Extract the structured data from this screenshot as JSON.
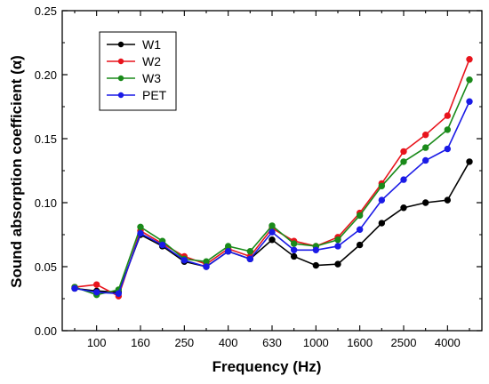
{
  "chart_data": {
    "type": "line",
    "xlabel": "Frequency (Hz)",
    "ylabel": "Sound absorption coefficient (α)",
    "ylim": [
      0.0,
      0.25
    ],
    "yticks": [
      "0.00",
      "0.05",
      "0.10",
      "0.15",
      "0.20",
      "0.25"
    ],
    "categories": [
      "80",
      "100",
      "125",
      "160",
      "200",
      "250",
      "315",
      "400",
      "500",
      "630",
      "800",
      "1000",
      "1250",
      "1600",
      "2000",
      "2500",
      "3150",
      "4000",
      "5000"
    ],
    "xtick_labels": [
      "100",
      "160",
      "250",
      "400",
      "630",
      "1000",
      "1600",
      "2500",
      "4000"
    ],
    "xtick_label_indices": [
      1,
      3,
      5,
      7,
      9,
      11,
      13,
      15,
      17
    ],
    "grid": false,
    "legend_position": "top-left",
    "series": [
      {
        "name": "W1",
        "color": "#000000",
        "values": [
          0.033,
          0.031,
          0.03,
          0.075,
          0.066,
          0.054,
          0.05,
          0.062,
          0.056,
          0.071,
          0.058,
          0.051,
          0.052,
          0.067,
          0.084,
          0.096,
          0.1,
          0.102,
          0.132
        ]
      },
      {
        "name": "W2",
        "color": "#e8141c",
        "values": [
          0.034,
          0.036,
          0.027,
          0.078,
          0.068,
          0.058,
          0.052,
          0.064,
          0.058,
          0.08,
          0.07,
          0.066,
          0.073,
          0.092,
          0.115,
          0.14,
          0.153,
          0.168,
          0.212
        ]
      },
      {
        "name": "W3",
        "color": "#1a8a1a",
        "values": [
          0.034,
          0.028,
          0.032,
          0.081,
          0.07,
          0.056,
          0.054,
          0.066,
          0.062,
          0.082,
          0.068,
          0.066,
          0.071,
          0.09,
          0.113,
          0.132,
          0.143,
          0.157,
          0.196
        ]
      },
      {
        "name": "PET",
        "color": "#1a1ae6",
        "values": [
          0.033,
          0.03,
          0.029,
          0.076,
          0.067,
          0.055,
          0.05,
          0.062,
          0.056,
          0.077,
          0.063,
          0.063,
          0.066,
          0.079,
          0.102,
          0.118,
          0.133,
          0.142,
          0.179
        ]
      }
    ]
  }
}
